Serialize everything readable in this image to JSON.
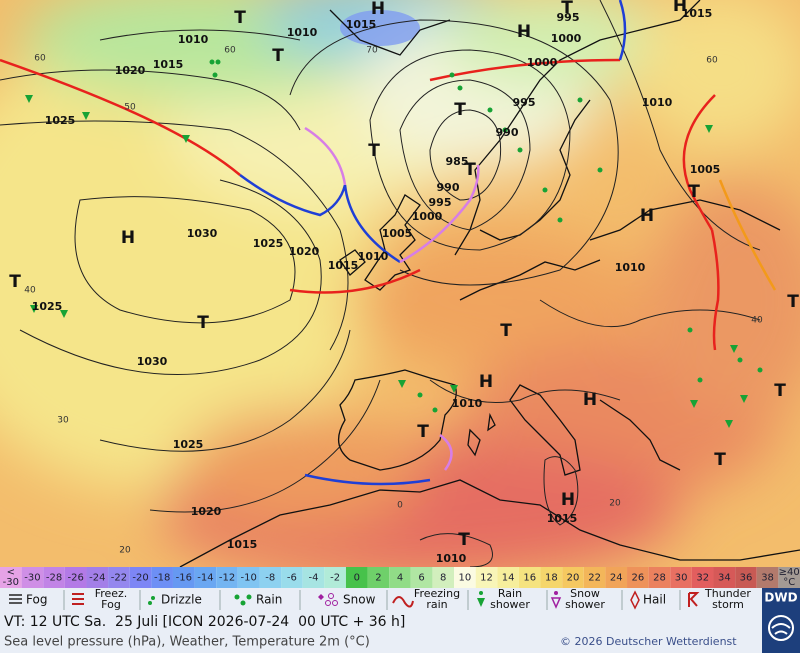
{
  "map": {
    "isobar_labels": [
      "1010",
      "1015",
      "1010",
      "1020",
      "1015",
      "1025",
      "995",
      "1000",
      "1000",
      "1015",
      "995",
      "990",
      "985",
      "990",
      "995",
      "1000",
      "1005",
      "1010",
      "1015",
      "1020",
      "1025",
      "1030",
      "1010",
      "1005",
      "1010",
      "1010",
      "1025",
      "1030",
      "1025",
      "1020",
      "1015",
      "1015",
      "1010"
    ],
    "pressure_centers": [
      "H",
      "H",
      "T",
      "T",
      "T",
      "T",
      "T",
      "T",
      "H",
      "H",
      "H",
      "T",
      "T",
      "T",
      "H",
      "T",
      "H",
      "T",
      "T",
      "T",
      "H",
      "T",
      "T"
    ],
    "grid_labels": [
      "60",
      "60",
      "70",
      "50",
      "40",
      "30",
      "20",
      "0",
      "20",
      "60",
      "40"
    ]
  },
  "scale": {
    "low": {
      "lines": [
        "<",
        "-30"
      ],
      "color": "#e6a3e6"
    },
    "cells": [
      {
        "label": "-30",
        "color": "#cf8fe6"
      },
      {
        "label": "-28",
        "color": "#c184e6"
      },
      {
        "label": "-26",
        "color": "#b37ae6"
      },
      {
        "label": "-24",
        "color": "#a37fe8"
      },
      {
        "label": "-22",
        "color": "#9487ee"
      },
      {
        "label": "-20",
        "color": "#7d86f5"
      },
      {
        "label": "-18",
        "color": "#6d8ff5"
      },
      {
        "label": "-16",
        "color": "#6699f2"
      },
      {
        "label": "-14",
        "color": "#6aa7f2"
      },
      {
        "label": "-12",
        "color": "#74b5f2"
      },
      {
        "label": "-10",
        "color": "#80c4f2"
      },
      {
        "label": "-8",
        "color": "#8dd1f0"
      },
      {
        "label": "-6",
        "color": "#99dceb"
      },
      {
        "label": "-4",
        "color": "#a6e4e2"
      },
      {
        "label": "-2",
        "color": "#b1ebd8"
      },
      {
        "label": "0",
        "color": "#47c24b"
      },
      {
        "label": "2",
        "color": "#6fd06a"
      },
      {
        "label": "4",
        "color": "#91dc87"
      },
      {
        "label": "6",
        "color": "#b0e6a3"
      },
      {
        "label": "8",
        "color": "#d2efbd"
      },
      {
        "label": "10",
        "color": "#fbfbe2"
      },
      {
        "label": "12",
        "color": "#f8f5b8"
      },
      {
        "label": "14",
        "color": "#f6ee9c"
      },
      {
        "label": "16",
        "color": "#f5e380"
      },
      {
        "label": "18",
        "color": "#f5d66c"
      },
      {
        "label": "20",
        "color": "#f5c860"
      },
      {
        "label": "22",
        "color": "#f3b65a"
      },
      {
        "label": "24",
        "color": "#f1a459"
      },
      {
        "label": "26",
        "color": "#ee925a"
      },
      {
        "label": "28",
        "color": "#eb815e"
      },
      {
        "label": "30",
        "color": "#e87062"
      },
      {
        "label": "32",
        "color": "#e25e5e"
      },
      {
        "label": "34",
        "color": "#d65958"
      },
      {
        "label": "36",
        "color": "#c85a54"
      },
      {
        "label": "38",
        "color": "#b27a6c"
      }
    ],
    "high": {
      "lines": [
        "≥40",
        "°C"
      ],
      "color": "#a39a94"
    }
  },
  "legend": {
    "items": [
      {
        "lines": [
          "Fog"
        ]
      },
      {
        "lines": [
          "Freez.",
          "Fog"
        ]
      },
      {
        "lines": [
          "Drizzle"
        ]
      },
      {
        "lines": [
          "Rain"
        ]
      },
      {
        "lines": [
          "Snow"
        ]
      },
      {
        "lines": [
          "Freezing",
          "rain"
        ]
      },
      {
        "lines": [
          "Rain",
          "shower"
        ]
      },
      {
        "lines": [
          "Snow",
          "shower"
        ]
      },
      {
        "lines": [
          "Hail"
        ]
      },
      {
        "lines": [
          "Thunder",
          "storm"
        ]
      }
    ]
  },
  "footer": {
    "valid_time": "VT: 12 UTC Sa.  25 Juli [ICON 2026-07-24  00 UTC + 36 h]",
    "product": "Sea level pressure (hPa), Weather, Temperature 2m (°C)",
    "copyright": "© 2026 Deutscher Wetterdienst",
    "logo": "DWD"
  }
}
